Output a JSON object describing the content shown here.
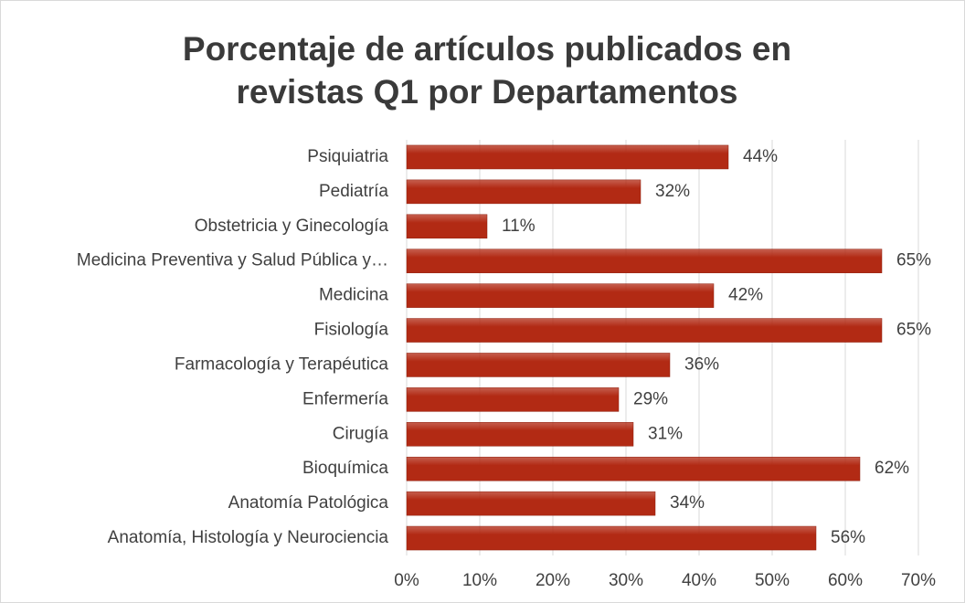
{
  "chart_data": {
    "type": "barh",
    "title": [
      "Porcentaje de artículos publicados en",
      "revistas  Q1 por Departamentos"
    ],
    "categories": [
      "Psiquiatria",
      "Pediatría",
      "Obstetricia y Ginecología",
      "Medicina Preventiva y Salud Pública y…",
      "Medicina",
      "Fisiología",
      "Farmacología y Terapéutica",
      "Enfermería",
      "Cirugía",
      "Bioquímica",
      "Anatomía Patológica",
      "Anatomía, Histología y Neurociencia"
    ],
    "values": [
      44,
      32,
      11,
      65,
      42,
      65,
      36,
      29,
      31,
      62,
      34,
      56
    ],
    "value_labels": [
      "44%",
      "32%",
      "11%",
      "65%",
      "42%",
      "65%",
      "36%",
      "29%",
      "31%",
      "62%",
      "34%",
      "56%"
    ],
    "color": "#b22a14",
    "xlim": [
      0,
      70
    ],
    "xticks": [
      {
        "value": 0,
        "label": "0%"
      },
      {
        "value": 10,
        "label": "10%"
      },
      {
        "value": 20,
        "label": "20%"
      },
      {
        "value": 30,
        "label": "30%"
      },
      {
        "value": 40,
        "label": "40%"
      },
      {
        "value": 50,
        "label": "50%"
      },
      {
        "value": 60,
        "label": "60%"
      },
      {
        "value": 70,
        "label": "70%"
      }
    ],
    "grid": true
  }
}
